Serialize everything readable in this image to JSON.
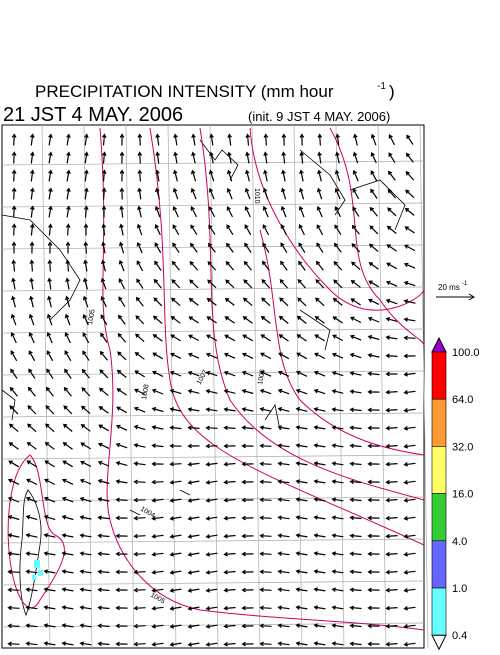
{
  "header": {
    "title": "PRECIPITATION INTENSITY (mm hour",
    "title_exponent": "-1",
    "title_close": ")",
    "valid_time": "21 JST 4 MAY. 2006",
    "init_time": "(init. 9 JST 4 MAY. 2006)"
  },
  "vector_reference": {
    "label": "20 ms",
    "exponent": "-1"
  },
  "colorbar": {
    "labels": [
      "100.0",
      "64.0",
      "32.0",
      "16.0",
      "4.0",
      "1.0",
      "0.4"
    ],
    "colors": [
      "#9900cc",
      "#ff0000",
      "#ff9933",
      "#ffff66",
      "#33cc33",
      "#6666ff",
      "#66ffff",
      "#ffffff"
    ]
  },
  "contour_labels": [
    "1010",
    "1005",
    "1008",
    "1007",
    "1006",
    "1004",
    "1005"
  ]
}
